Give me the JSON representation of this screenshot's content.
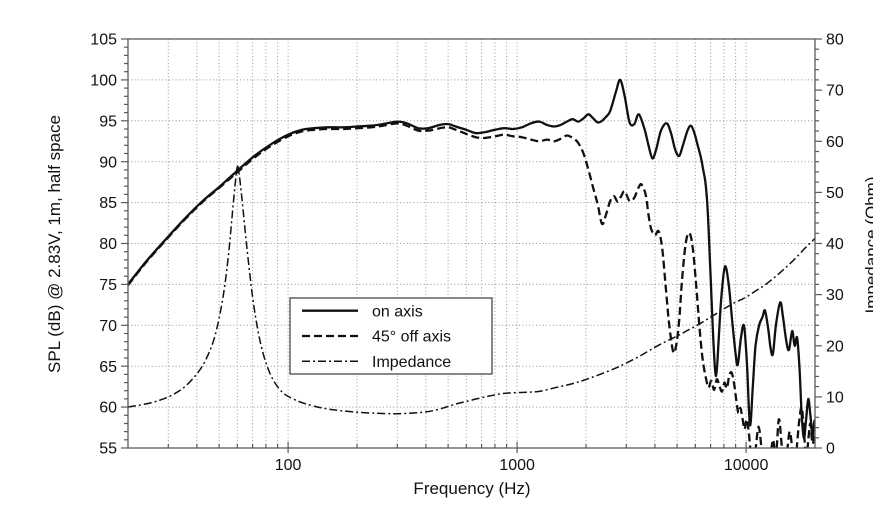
{
  "chart_data": {
    "type": "line",
    "title": "",
    "xlabel": "Frequency (Hz)",
    "ylabel_left": "SPL (dB) @ 2.83V, 1m, half space",
    "ylabel_right": "Impedance (Ohm)",
    "x_scale": "log",
    "xlim": [
      20,
      20000
    ],
    "ylim_left": [
      55,
      105
    ],
    "ylim_right": [
      0,
      80
    ],
    "x_major_ticks": [
      100,
      1000,
      10000
    ],
    "x_major_tick_labels": [
      "100",
      "1000",
      "10000"
    ],
    "y_left_ticks": [
      55,
      60,
      65,
      70,
      75,
      80,
      85,
      90,
      95,
      100,
      105
    ],
    "y_right_ticks": [
      0,
      10,
      20,
      30,
      40,
      50,
      60,
      70,
      80
    ],
    "grid": {
      "style": "dotted",
      "x": "all log decade multiples",
      "y": "every 5 dB"
    },
    "legend": {
      "position": "inside-lower-left",
      "items": [
        "on axis",
        "45° off axis",
        "Impedance"
      ]
    },
    "colors": {
      "line": "#111111",
      "grid": "#949494",
      "frame": "#5a5a5a",
      "text": "#111111",
      "background": "#ffffff"
    },
    "series": [
      {
        "name": "on axis",
        "axis": "left",
        "style": "solid",
        "points": [
          [
            20,
            75
          ],
          [
            24,
            77.8
          ],
          [
            29,
            80.4
          ],
          [
            35,
            82.9
          ],
          [
            42,
            85.1
          ],
          [
            50,
            86.9
          ],
          [
            60,
            88.9
          ],
          [
            72,
            90.8
          ],
          [
            85,
            92.2
          ],
          [
            100,
            93.3
          ],
          [
            115,
            93.9
          ],
          [
            130,
            94.1
          ],
          [
            150,
            94.2
          ],
          [
            175,
            94.2
          ],
          [
            200,
            94.3
          ],
          [
            230,
            94.4
          ],
          [
            260,
            94.6
          ],
          [
            300,
            94.9
          ],
          [
            330,
            94.7
          ],
          [
            370,
            94.1
          ],
          [
            410,
            94.1
          ],
          [
            460,
            94.5
          ],
          [
            500,
            94.6
          ],
          [
            540,
            94.3
          ],
          [
            600,
            93.9
          ],
          [
            660,
            93.5
          ],
          [
            720,
            93.6
          ],
          [
            800,
            93.9
          ],
          [
            880,
            94.1
          ],
          [
            960,
            94
          ],
          [
            1050,
            94.2
          ],
          [
            1150,
            94.7
          ],
          [
            1250,
            94.9
          ],
          [
            1350,
            94.5
          ],
          [
            1450,
            94.3
          ],
          [
            1550,
            94.5
          ],
          [
            1650,
            94.9
          ],
          [
            1750,
            95.2
          ],
          [
            1850,
            94.9
          ],
          [
            1950,
            95.3
          ],
          [
            2050,
            95.8
          ],
          [
            2150,
            95.3
          ],
          [
            2250,
            94.8
          ],
          [
            2350,
            95
          ],
          [
            2450,
            95.5
          ],
          [
            2550,
            96.2
          ],
          [
            2700,
            98.5
          ],
          [
            2820,
            100
          ],
          [
            2950,
            98
          ],
          [
            3100,
            94.8
          ],
          [
            3250,
            94.6
          ],
          [
            3400,
            95.8
          ],
          [
            3600,
            94
          ],
          [
            3750,
            92
          ],
          [
            3900,
            90.4
          ],
          [
            4050,
            91.5
          ],
          [
            4250,
            93.8
          ],
          [
            4500,
            94.7
          ],
          [
            4700,
            93.5
          ],
          [
            4900,
            91.5
          ],
          [
            5100,
            90.7
          ],
          [
            5300,
            92
          ],
          [
            5550,
            93.8
          ],
          [
            5750,
            94.4
          ],
          [
            5950,
            93.5
          ],
          [
            6150,
            92
          ],
          [
            6350,
            90.5
          ],
          [
            6500,
            89
          ],
          [
            6650,
            87.4
          ],
          [
            6800,
            84
          ],
          [
            7000,
            76
          ],
          [
            7200,
            68
          ],
          [
            7400,
            63.8
          ],
          [
            7600,
            68.5
          ],
          [
            7800,
            73.5
          ],
          [
            8090,
            77.2
          ],
          [
            8400,
            75
          ],
          [
            8700,
            70.5
          ],
          [
            9000,
            66.5
          ],
          [
            9200,
            65.2
          ],
          [
            9500,
            68.5
          ],
          [
            9800,
            69.9
          ],
          [
            10100,
            65
          ],
          [
            10400,
            57.8
          ],
          [
            10700,
            62.5
          ],
          [
            11000,
            67.5
          ],
          [
            11400,
            70
          ],
          [
            11800,
            71
          ],
          [
            12100,
            71.8
          ],
          [
            12500,
            69.5
          ],
          [
            12800,
            67.2
          ],
          [
            13100,
            66.5
          ],
          [
            13500,
            70
          ],
          [
            14100,
            72.8
          ],
          [
            14500,
            71
          ],
          [
            15000,
            68
          ],
          [
            15400,
            67
          ],
          [
            15900,
            69.3
          ],
          [
            16300,
            67.5
          ],
          [
            16700,
            68.5
          ],
          [
            17100,
            65
          ],
          [
            17500,
            59
          ],
          [
            17900,
            56.2
          ],
          [
            18300,
            58.6
          ],
          [
            18700,
            61
          ],
          [
            19100,
            59
          ],
          [
            19500,
            56.5
          ],
          [
            19800,
            58
          ],
          [
            20000,
            58.5
          ]
        ]
      },
      {
        "name": "45° off axis",
        "axis": "left",
        "style": "dashed",
        "points": [
          [
            20,
            74.9
          ],
          [
            24,
            77.7
          ],
          [
            29,
            80.3
          ],
          [
            35,
            82.8
          ],
          [
            42,
            85
          ],
          [
            50,
            86.8
          ],
          [
            60,
            88.7
          ],
          [
            72,
            90.6
          ],
          [
            85,
            92
          ],
          [
            100,
            93.1
          ],
          [
            115,
            93.7
          ],
          [
            130,
            93.9
          ],
          [
            150,
            94
          ],
          [
            175,
            94
          ],
          [
            200,
            94.1
          ],
          [
            230,
            94.2
          ],
          [
            260,
            94.4
          ],
          [
            300,
            94.7
          ],
          [
            330,
            94.4
          ],
          [
            370,
            93.8
          ],
          [
            410,
            93.8
          ],
          [
            460,
            94.1
          ],
          [
            500,
            94.2
          ],
          [
            540,
            93.9
          ],
          [
            600,
            93.4
          ],
          [
            660,
            93
          ],
          [
            720,
            92.9
          ],
          [
            800,
            93.1
          ],
          [
            880,
            93.3
          ],
          [
            960,
            93.1
          ],
          [
            1050,
            93
          ],
          [
            1150,
            92.7
          ],
          [
            1250,
            92.5
          ],
          [
            1350,
            92.7
          ],
          [
            1450,
            92.5
          ],
          [
            1550,
            92.8
          ],
          [
            1650,
            93.2
          ],
          [
            1750,
            92.9
          ],
          [
            1850,
            92.3
          ],
          [
            1950,
            91
          ],
          [
            2050,
            89
          ],
          [
            2150,
            86.8
          ],
          [
            2250,
            84.8
          ],
          [
            2350,
            82.4
          ],
          [
            2450,
            83.6
          ],
          [
            2550,
            85.2
          ],
          [
            2650,
            85.8
          ],
          [
            2750,
            85.1
          ],
          [
            2850,
            85.8
          ],
          [
            2950,
            86.4
          ],
          [
            3100,
            85.2
          ],
          [
            3250,
            85.6
          ],
          [
            3400,
            86.9
          ],
          [
            3500,
            87.2
          ],
          [
            3650,
            85.9
          ],
          [
            3750,
            83.5
          ],
          [
            3850,
            81.8
          ],
          [
            4000,
            81
          ],
          [
            4150,
            81.5
          ],
          [
            4300,
            79.5
          ],
          [
            4450,
            75
          ],
          [
            4600,
            70.5
          ],
          [
            4800,
            66.8
          ],
          [
            4950,
            67.5
          ],
          [
            5100,
            70.5
          ],
          [
            5250,
            75.5
          ],
          [
            5450,
            80
          ],
          [
            5650,
            81.3
          ],
          [
            5850,
            79.5
          ],
          [
            6050,
            75
          ],
          [
            6250,
            70
          ],
          [
            6450,
            66
          ],
          [
            6650,
            63.8
          ],
          [
            6850,
            62.4
          ],
          [
            7050,
            63.2
          ],
          [
            7250,
            62.1
          ],
          [
            7450,
            63.4
          ],
          [
            7650,
            62.6
          ],
          [
            7850,
            61.9
          ],
          [
            8050,
            63
          ],
          [
            8250,
            62.3
          ],
          [
            8450,
            63.9
          ],
          [
            8650,
            64.2
          ],
          [
            8850,
            63
          ],
          [
            9050,
            61
          ],
          [
            9250,
            59.3
          ],
          [
            9450,
            59.9
          ],
          [
            9650,
            58.6
          ],
          [
            9850,
            57.3
          ],
          [
            10050,
            58.5
          ],
          [
            10250,
            57.2
          ],
          [
            10450,
            54.8
          ],
          [
            10750,
            52
          ],
          [
            11050,
            55.3
          ],
          [
            11350,
            57.6
          ],
          [
            11650,
            55.2
          ],
          [
            11950,
            52
          ],
          [
            12300,
            50.5
          ],
          [
            12700,
            53
          ],
          [
            13100,
            56
          ],
          [
            13500,
            54
          ],
          [
            13900,
            58.5
          ],
          [
            14300,
            55.5
          ],
          [
            14700,
            52.5
          ],
          [
            15100,
            54.5
          ],
          [
            15500,
            57
          ],
          [
            15900,
            55
          ],
          [
            16300,
            52
          ],
          [
            16700,
            55.5
          ],
          [
            17100,
            58.5
          ],
          [
            17500,
            60
          ],
          [
            17900,
            57
          ],
          [
            18300,
            53.5
          ],
          [
            18700,
            56
          ],
          [
            19100,
            58
          ],
          [
            19500,
            55.5
          ],
          [
            20000,
            57
          ]
        ]
      },
      {
        "name": "Impedance",
        "axis": "right",
        "style": "dashdot",
        "points": [
          [
            20,
            8
          ],
          [
            25,
            8.8
          ],
          [
            30,
            10
          ],
          [
            35,
            11.8
          ],
          [
            40,
            14.5
          ],
          [
            44,
            17.5
          ],
          [
            48,
            22
          ],
          [
            52,
            29.5
          ],
          [
            55,
            38
          ],
          [
            57,
            45.5
          ],
          [
            59,
            52.5
          ],
          [
            60,
            55
          ],
          [
            61,
            54
          ],
          [
            63,
            48.5
          ],
          [
            66,
            39.5
          ],
          [
            70,
            29.5
          ],
          [
            74,
            22.8
          ],
          [
            78,
            18.3
          ],
          [
            83,
            14.8
          ],
          [
            88,
            12.6
          ],
          [
            94,
            11
          ],
          [
            100,
            10.1
          ],
          [
            110,
            9.2
          ],
          [
            120,
            8.6
          ],
          [
            135,
            8
          ],
          [
            150,
            7.6
          ],
          [
            170,
            7.3
          ],
          [
            200,
            7
          ],
          [
            240,
            6.8
          ],
          [
            290,
            6.7
          ],
          [
            340,
            6.8
          ],
          [
            390,
            7
          ],
          [
            440,
            7.4
          ],
          [
            490,
            8
          ],
          [
            540,
            8.6
          ],
          [
            600,
            9.1
          ],
          [
            680,
            9.7
          ],
          [
            760,
            10.2
          ],
          [
            850,
            10.6
          ],
          [
            950,
            10.8
          ],
          [
            1100,
            10.9
          ],
          [
            1260,
            11.1
          ],
          [
            1500,
            11.9
          ],
          [
            1750,
            12.6
          ],
          [
            2000,
            13.4
          ],
          [
            2300,
            14.4
          ],
          [
            2650,
            15.5
          ],
          [
            3000,
            16.6
          ],
          [
            3500,
            18.2
          ],
          [
            4000,
            19.7
          ],
          [
            4500,
            20.9
          ],
          [
            5000,
            21.9
          ],
          [
            5500,
            22.9
          ],
          [
            6000,
            23.8
          ],
          [
            6500,
            24.7
          ],
          [
            7000,
            25.6
          ],
          [
            7500,
            26.4
          ],
          [
            8000,
            27.2
          ],
          [
            8500,
            27.9
          ],
          [
            9000,
            28.5
          ],
          [
            9500,
            29
          ],
          [
            10000,
            29.5
          ],
          [
            11000,
            30.7
          ],
          [
            12000,
            31.8
          ],
          [
            13000,
            33
          ],
          [
            14000,
            34.2
          ],
          [
            15000,
            35.4
          ],
          [
            16000,
            36.6
          ],
          [
            17000,
            37.8
          ],
          [
            18000,
            39
          ],
          [
            19000,
            40
          ],
          [
            20000,
            41
          ]
        ]
      }
    ]
  }
}
